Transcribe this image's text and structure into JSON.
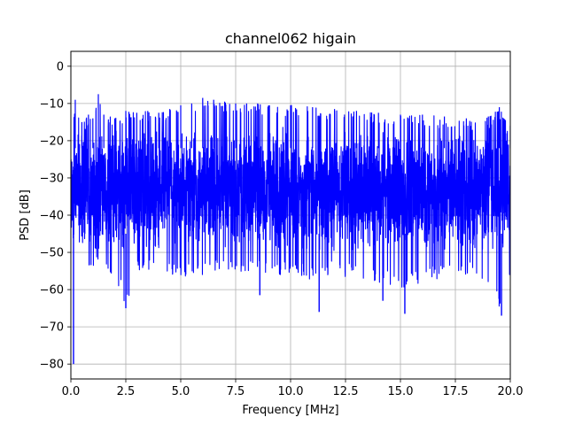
{
  "chart_data": {
    "type": "line",
    "title": "channel062 higain",
    "xlabel": "Frequency [MHz]",
    "ylabel": "PSD [dB]",
    "xlim": [
      0,
      20
    ],
    "ylim": [
      -84,
      4
    ],
    "xticks": [
      0,
      2.5,
      5,
      7.5,
      10,
      12.5,
      15,
      17.5,
      20
    ],
    "xtick_labels": [
      "0.0",
      "2.5",
      "5.0",
      "7.5",
      "10.0",
      "12.5",
      "15.0",
      "17.5",
      "20.0"
    ],
    "yticks": [
      0,
      -10,
      -20,
      -30,
      -40,
      -50,
      -60,
      -70,
      -80
    ],
    "ytick_labels": [
      "0",
      "−10",
      "−20",
      "−30",
      "−40",
      "−50",
      "−60",
      "−70",
      "−80"
    ],
    "grid": true,
    "series": [
      {
        "color": "#0000ff",
        "x_range": [
          0,
          20
        ],
        "upper_envelope": [
          [
            0.0,
            -22
          ],
          [
            0.2,
            -9
          ],
          [
            0.5,
            -15
          ],
          [
            0.8,
            -13
          ],
          [
            1.0,
            -14
          ],
          [
            1.25,
            -7.5
          ],
          [
            1.5,
            -13
          ],
          [
            2.0,
            -14
          ],
          [
            2.5,
            -12
          ],
          [
            3.0,
            -12.5
          ],
          [
            3.5,
            -12
          ],
          [
            4.0,
            -12.5
          ],
          [
            4.5,
            -11.5
          ],
          [
            5.0,
            -10.5
          ],
          [
            5.5,
            -10
          ],
          [
            6.0,
            -8.5
          ],
          [
            6.5,
            -9
          ],
          [
            7.0,
            -9.5
          ],
          [
            7.5,
            -10
          ],
          [
            8.0,
            -10
          ],
          [
            8.5,
            -10
          ],
          [
            9.0,
            -10.5
          ],
          [
            10.0,
            -10.5
          ],
          [
            11.0,
            -11
          ],
          [
            12.0,
            -11.5
          ],
          [
            13.0,
            -12
          ],
          [
            14.0,
            -12.5
          ],
          [
            15.0,
            -13
          ],
          [
            16.0,
            -13
          ],
          [
            17.0,
            -13.5
          ],
          [
            18.0,
            -14
          ],
          [
            19.0,
            -13.5
          ],
          [
            19.5,
            -11
          ],
          [
            20.0,
            -16
          ]
        ],
        "band_upper": -22,
        "band_lower": -44,
        "lower_envelope": [
          [
            0.0,
            -50
          ],
          [
            0.12,
            -80
          ],
          [
            0.3,
            -56
          ],
          [
            1.0,
            -54
          ],
          [
            2.0,
            -56
          ],
          [
            2.5,
            -65
          ],
          [
            3.0,
            -55
          ],
          [
            4.0,
            -56
          ],
          [
            5.0,
            -57
          ],
          [
            5.8,
            -57
          ],
          [
            6.5,
            -55
          ],
          [
            7.5,
            -55
          ],
          [
            8.5,
            -56
          ],
          [
            9.0,
            -57
          ],
          [
            10.0,
            -56
          ],
          [
            11.0,
            -58
          ],
          [
            12.0,
            -56
          ],
          [
            13.0,
            -57
          ],
          [
            14.0,
            -58
          ],
          [
            15.0,
            -60
          ],
          [
            16.0,
            -58
          ],
          [
            17.0,
            -57
          ],
          [
            18.0,
            -56
          ],
          [
            19.0,
            -58
          ],
          [
            19.6,
            -67
          ],
          [
            20.0,
            -57
          ]
        ],
        "notable_dips": [
          [
            0.12,
            -80
          ],
          [
            2.5,
            -65
          ],
          [
            8.6,
            -61.5
          ],
          [
            11.3,
            -66
          ],
          [
            14.2,
            -63
          ],
          [
            15.2,
            -66.5
          ],
          [
            19.6,
            -67
          ]
        ]
      }
    ]
  }
}
